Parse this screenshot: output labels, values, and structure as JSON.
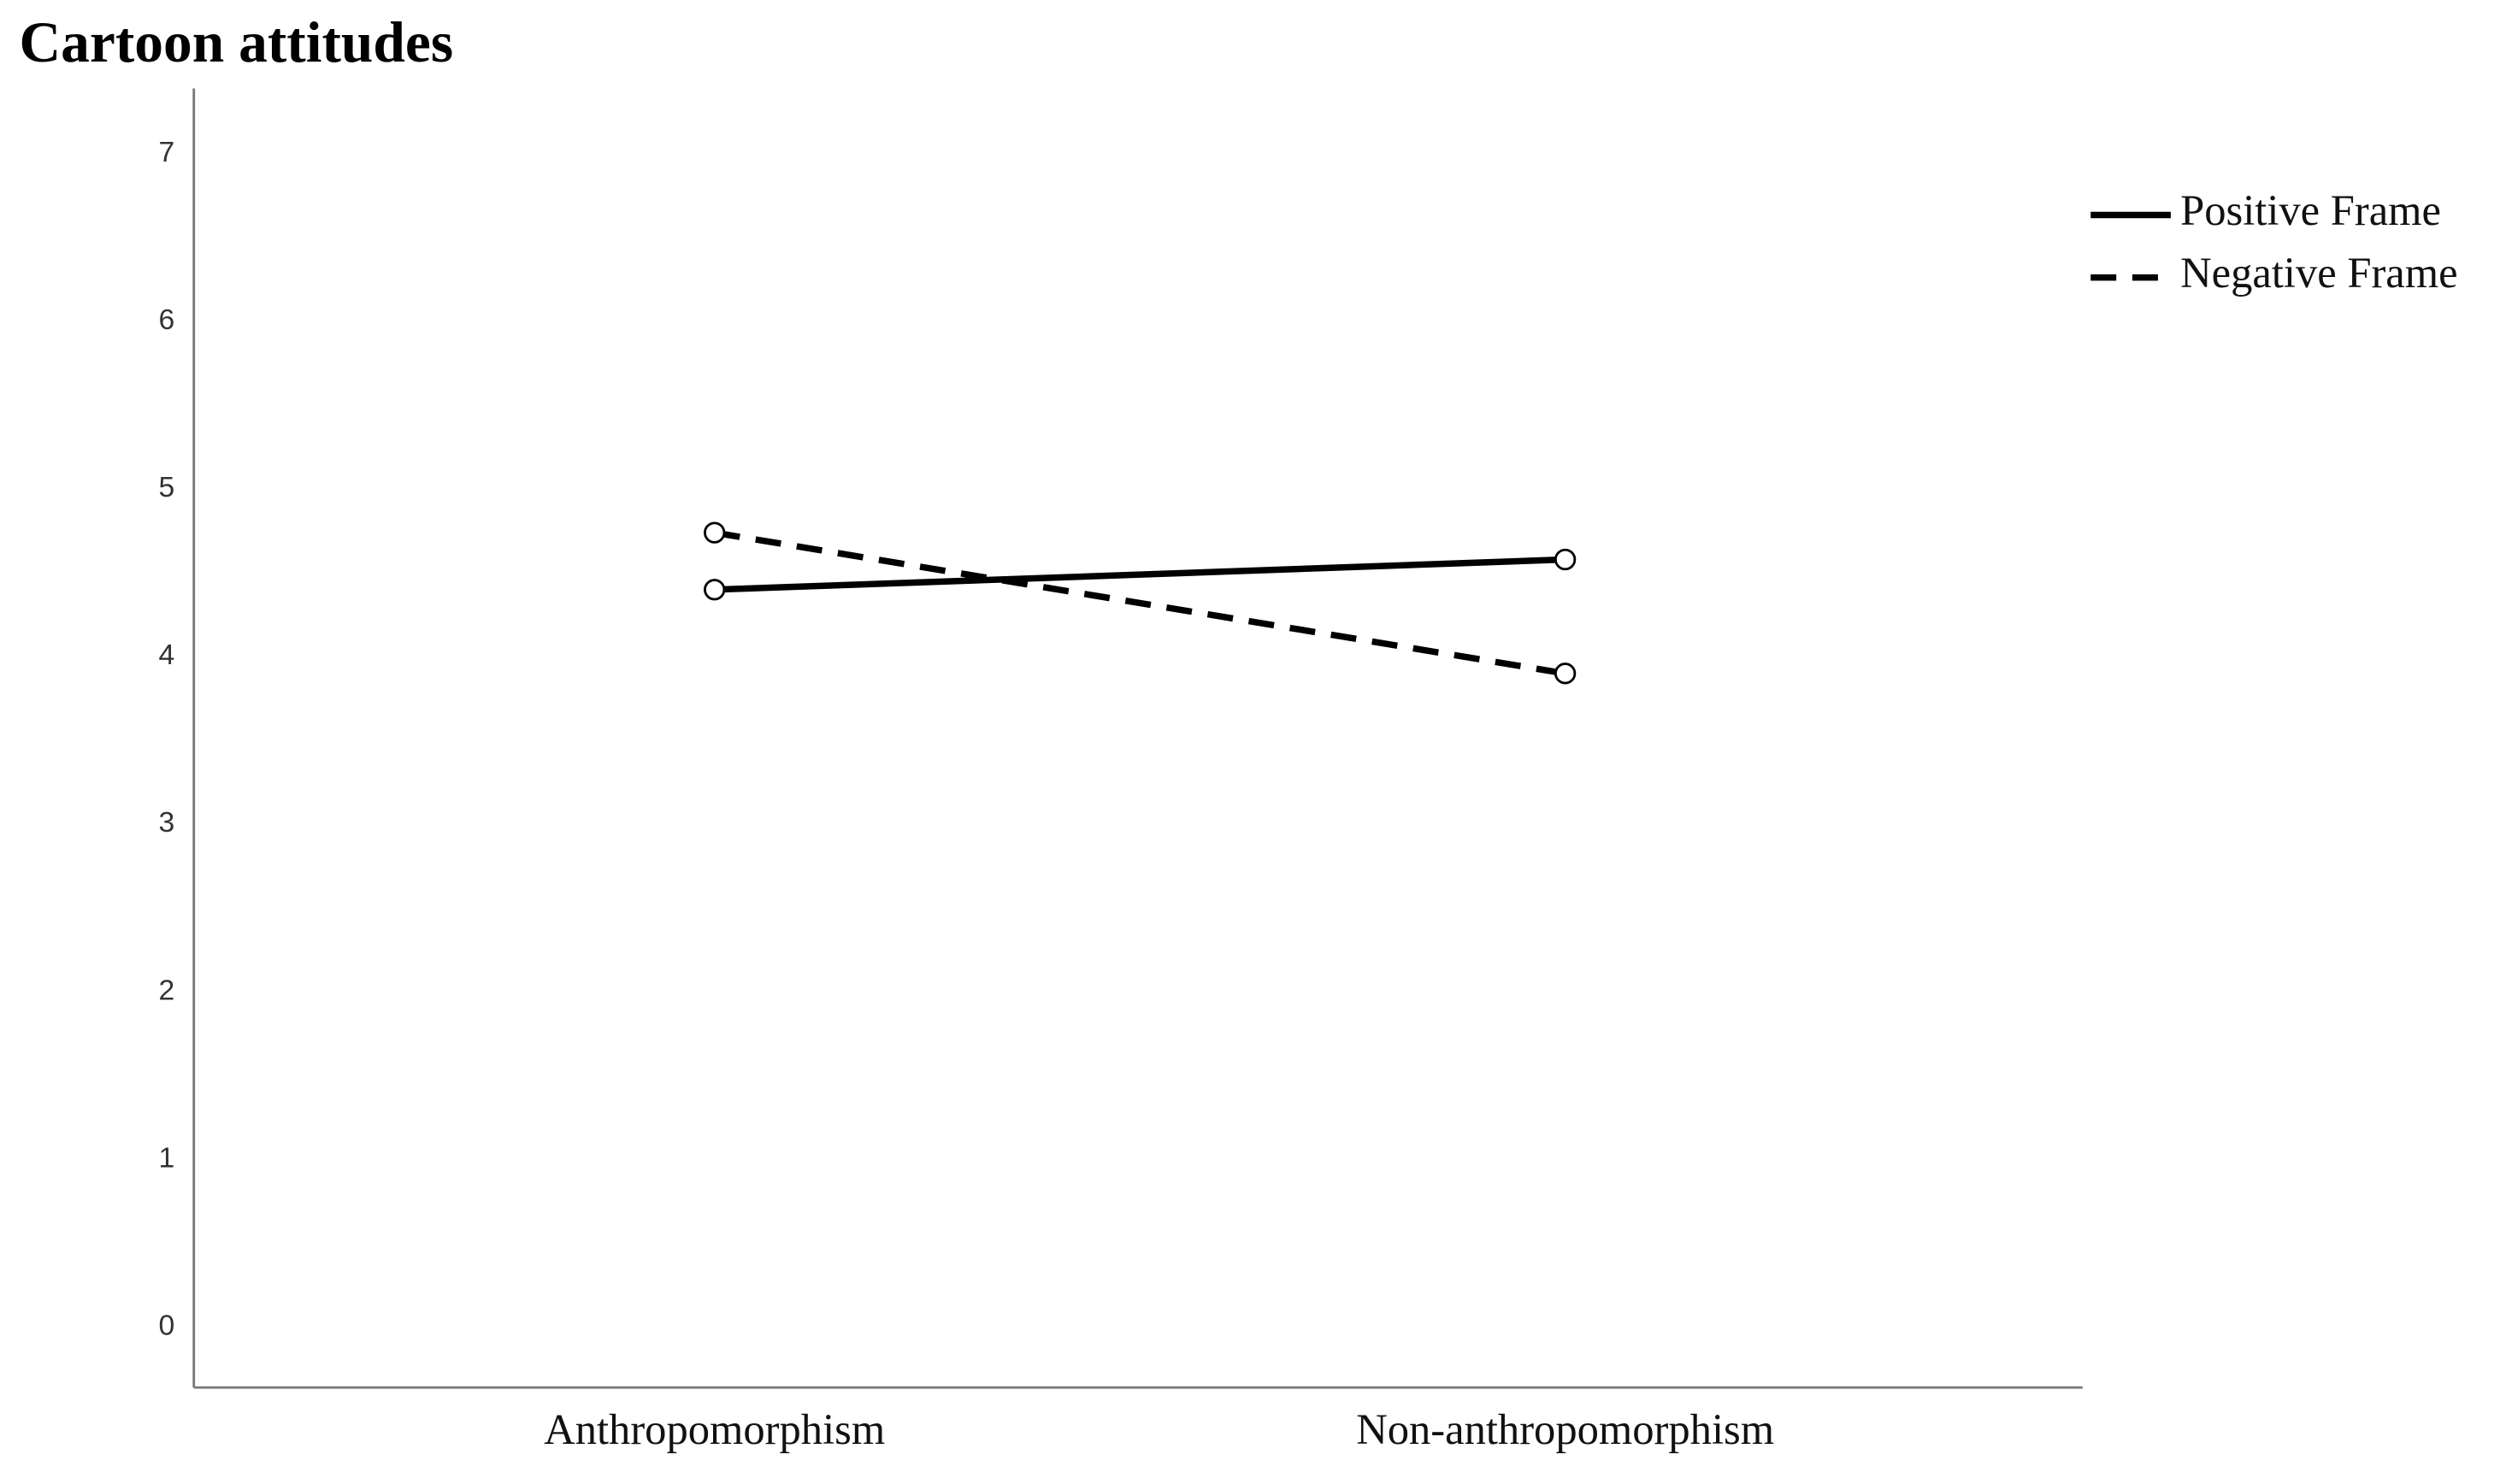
{
  "chart_data": {
    "type": "line",
    "title": "Cartoon attitudes",
    "categories": [
      "Anthropomorphism",
      "Non-anthropomorphism"
    ],
    "series": [
      {
        "name": "Positive Frame",
        "color": "#000000",
        "style": "solid",
        "values": [
          4.4,
          4.58
        ]
      },
      {
        "name": "Negative Frame",
        "color": "#000000",
        "style": "dashed",
        "values": [
          4.74,
          3.9
        ]
      }
    ],
    "ylim": [
      -0.36,
      7.39
    ],
    "yticks": [
      0,
      1,
      2,
      3,
      4,
      5,
      6,
      7
    ],
    "grid": false,
    "legend": "top-right"
  }
}
